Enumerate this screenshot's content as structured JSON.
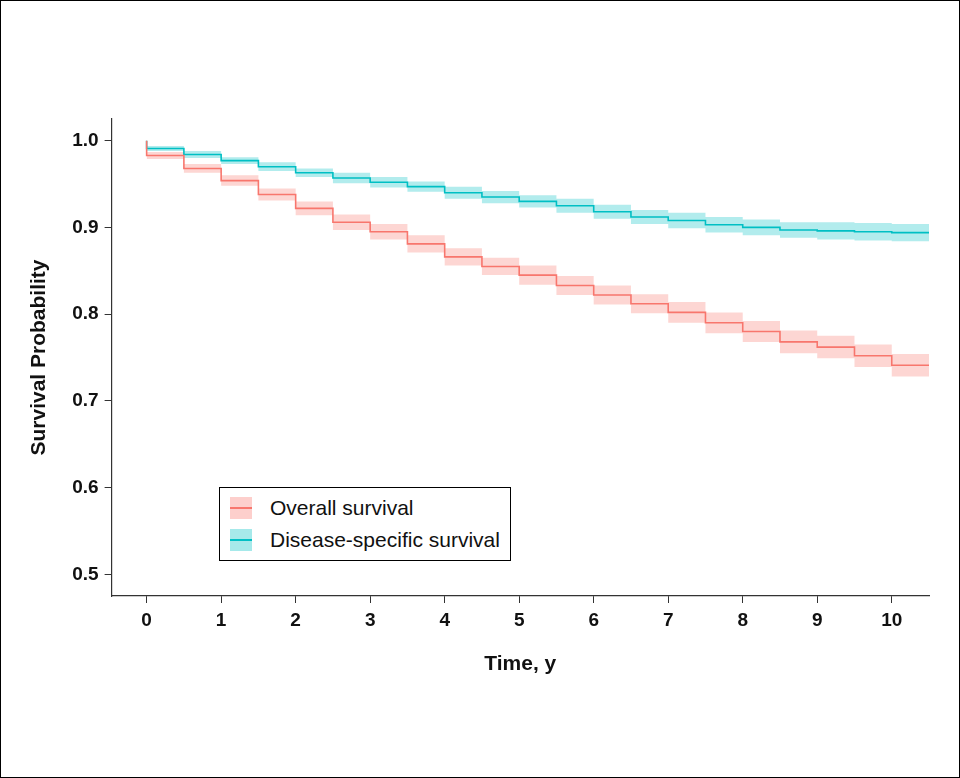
{
  "chart_data": {
    "type": "line",
    "x_label": "Time, y",
    "y_label": "Survival Probability",
    "x": [
      0,
      0.5,
      1,
      1.5,
      2,
      2.5,
      3,
      3.5,
      4,
      4.5,
      5,
      5.5,
      6,
      6.5,
      7,
      7.5,
      8,
      8.5,
      9,
      9.5,
      10,
      10.5
    ],
    "series": [
      {
        "name": "Overall survival",
        "color": "#F8766D",
        "line_style": "step",
        "values": [
          1.0,
          0.983,
          0.968,
          0.954,
          0.938,
          0.922,
          0.906,
          0.895,
          0.881,
          0.866,
          0.855,
          0.845,
          0.833,
          0.822,
          0.812,
          0.802,
          0.79,
          0.78,
          0.768,
          0.762,
          0.752,
          0.741
        ],
        "lower": [
          1.0,
          0.979,
          0.963,
          0.948,
          0.931,
          0.914,
          0.897,
          0.886,
          0.871,
          0.856,
          0.845,
          0.834,
          0.822,
          0.811,
          0.801,
          0.79,
          0.778,
          0.768,
          0.755,
          0.749,
          0.739,
          0.728
        ],
        "upper": [
          1.0,
          0.987,
          0.973,
          0.96,
          0.945,
          0.93,
          0.915,
          0.904,
          0.891,
          0.876,
          0.865,
          0.856,
          0.844,
          0.833,
          0.823,
          0.814,
          0.802,
          0.792,
          0.781,
          0.775,
          0.765,
          0.754
        ]
      },
      {
        "name": "Disease-specific survival",
        "color": "#00BFC4",
        "line_style": "step",
        "values": [
          1.0,
          0.991,
          0.984,
          0.977,
          0.97,
          0.963,
          0.957,
          0.952,
          0.947,
          0.94,
          0.935,
          0.93,
          0.925,
          0.918,
          0.912,
          0.908,
          0.903,
          0.9,
          0.897,
          0.896,
          0.895,
          0.894
        ],
        "lower": [
          1.0,
          0.988,
          0.98,
          0.973,
          0.965,
          0.958,
          0.951,
          0.946,
          0.941,
          0.933,
          0.928,
          0.923,
          0.917,
          0.91,
          0.904,
          0.899,
          0.894,
          0.891,
          0.888,
          0.886,
          0.885,
          0.884
        ],
        "upper": [
          1.0,
          0.994,
          0.988,
          0.981,
          0.975,
          0.968,
          0.963,
          0.958,
          0.953,
          0.947,
          0.942,
          0.937,
          0.933,
          0.926,
          0.92,
          0.917,
          0.912,
          0.909,
          0.906,
          0.906,
          0.905,
          0.904
        ]
      }
    ],
    "xlim": [
      -0.47,
      10.5
    ],
    "xticks": [
      0,
      1,
      2,
      3,
      4,
      5,
      6,
      7,
      8,
      9,
      10
    ],
    "ylim": [
      0.475,
      1.025
    ],
    "yticks": [
      0.5,
      0.6,
      0.7,
      0.8,
      0.9,
      {
        "value": 1,
        "label": "1.0"
      }
    ],
    "grid": false,
    "legend": "lower left"
  }
}
